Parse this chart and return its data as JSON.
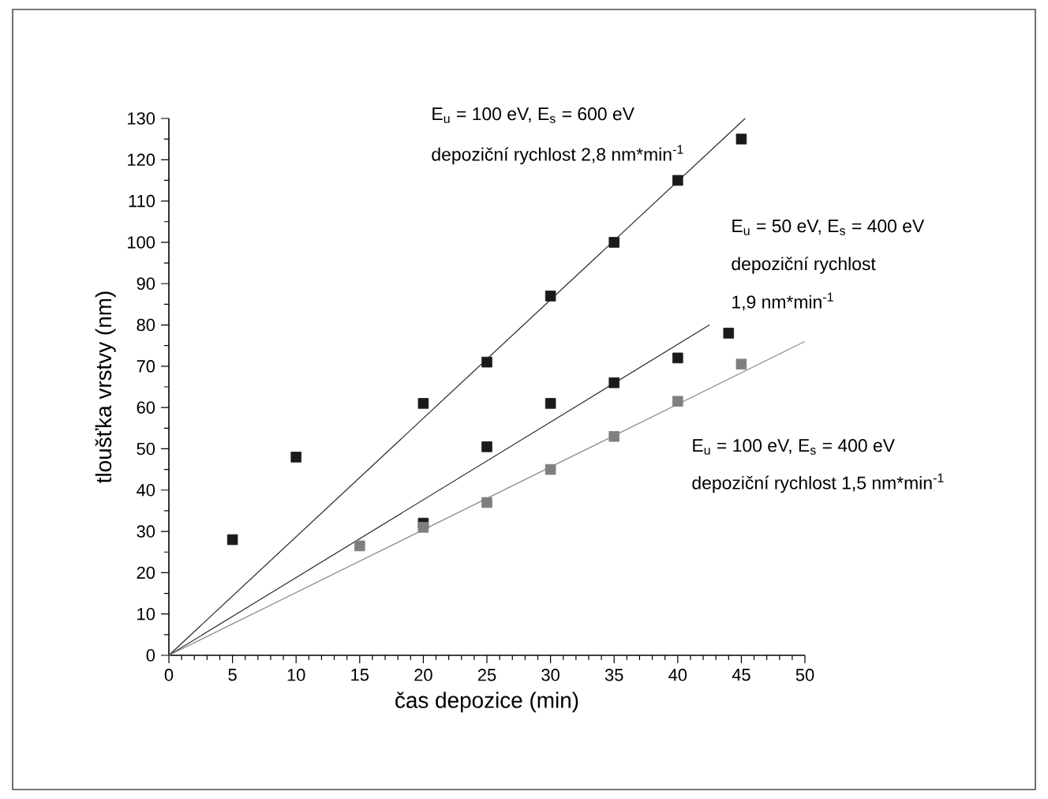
{
  "chart_data": {
    "type": "scatter",
    "xlabel": "čas depozice (min)",
    "ylabel": "tloušťka vrstvy (nm)",
    "xlim": [
      0,
      50
    ],
    "ylim": [
      0,
      130
    ],
    "xticks": [
      0,
      5,
      10,
      15,
      20,
      25,
      30,
      35,
      40,
      45,
      50
    ],
    "yticks": [
      0,
      10,
      20,
      30,
      40,
      50,
      60,
      70,
      80,
      90,
      100,
      110,
      120,
      130
    ],
    "grid": false,
    "marker": "square",
    "series": [
      {
        "color": "#1a1a1a",
        "x": [
          5,
          10,
          20,
          25,
          30,
          35,
          40,
          45
        ],
        "values": [
          28,
          48,
          61,
          71,
          87,
          100,
          115,
          125
        ]
      },
      {
        "color": "#1a1a1a",
        "x": [
          20,
          25,
          30,
          35,
          40,
          44
        ],
        "values": [
          32,
          50.5,
          61,
          66,
          72,
          78
        ]
      },
      {
        "color": "#7f7f7f",
        "x": [
          15,
          20,
          25,
          30,
          35,
          40,
          45
        ],
        "values": [
          26.5,
          31,
          37,
          45,
          53,
          61.5,
          70.5
        ]
      },
      {
        "type": "line",
        "marker": "none",
        "color": "#2a2a2a",
        "x": [
          0,
          45.3
        ],
        "values": [
          0,
          130
        ]
      },
      {
        "type": "line",
        "marker": "none",
        "color": "#2a2a2a",
        "x": [
          0,
          42.5
        ],
        "values": [
          0,
          80
        ]
      },
      {
        "type": "line",
        "marker": "none",
        "color": "#8a8a8a",
        "x": [
          0,
          50
        ],
        "values": [
          0,
          76
        ]
      }
    ],
    "annotations": [
      "E$_{u}$ = 100 eV, E$_{s}$ = 600 eV",
      "depoziční rychlost 2,8 nm*min$^{-1}$",
      "E$_{u}$ = 50 eV, E$_{s}$ = 400 eV",
      "depoziční rychlost",
      "1,9 nm*min$^{-1}$",
      "E$_{u}$ = 100 eV, E$_{s}$ = 400 eV",
      "depoziční rychlost 1,5 nm*min$^{-1}$"
    ]
  }
}
